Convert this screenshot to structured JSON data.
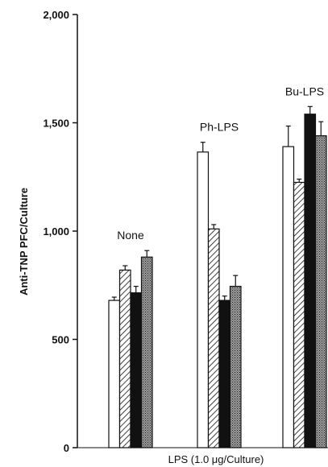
{
  "chart_data": {
    "type": "bar",
    "title": "",
    "xlabel": "LPS (1.0 μg/Culture)",
    "ylabel": "Anti-TNP PFC/Culture",
    "ylim": [
      0,
      2000
    ],
    "yticks": [
      0,
      500,
      1000,
      1500,
      2000
    ],
    "ytick_labels": [
      "0",
      "500",
      "1,000",
      "1,500",
      "2,000"
    ],
    "categories": [
      "None",
      "Ph-LPS",
      "Bu-LPS"
    ],
    "series": [
      {
        "fill": "white",
        "values": [
          680,
          1365,
          1390
        ],
        "errors": [
          15,
          45,
          95
        ]
      },
      {
        "fill": "hatched",
        "values": [
          820,
          1010,
          1225
        ],
        "errors": [
          20,
          20,
          15
        ]
      },
      {
        "fill": "solid",
        "values": [
          715,
          680,
          1540
        ],
        "errors": [
          30,
          20,
          35
        ]
      },
      {
        "fill": "stippled",
        "values": [
          880,
          745,
          1440
        ],
        "errors": [
          30,
          50,
          65
        ]
      }
    ],
    "grid": false,
    "legend": "none"
  }
}
